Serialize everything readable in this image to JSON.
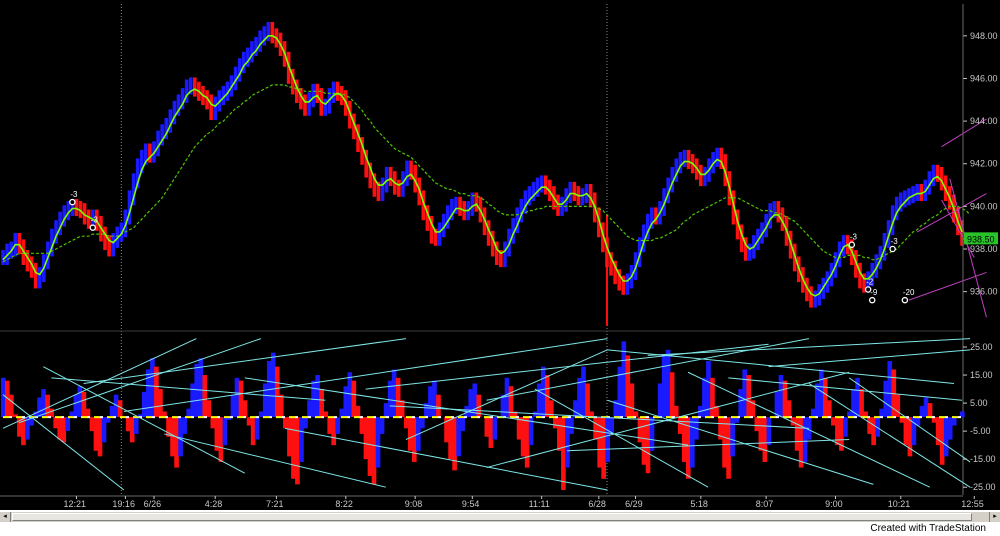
{
  "chart_data": [
    {
      "type": "line",
      "panel": "price",
      "title": "",
      "xlabel": "",
      "ylabel": "",
      "ylim": [
        934.2,
        949.4
      ],
      "yticks": [
        936.0,
        938.0,
        940.0,
        942.0,
        944.0,
        946.0,
        948.0
      ],
      "ytick_labels": [
        "936.00",
        "938.00",
        "940.00",
        "942.00",
        "944.00",
        "946.00",
        "948.00"
      ],
      "x_time_labels": [
        "12:21",
        "19:16",
        "6/26",
        "4:28",
        "7:21",
        "8:22",
        "9:08",
        "9:54",
        "11:11",
        "6/28",
        "6/29",
        "5:18",
        "8:07",
        "9:00",
        "10:21",
        "12:55"
      ],
      "x_label_index": [
        18,
        30,
        37,
        52,
        67,
        84,
        101,
        115,
        132,
        146,
        155,
        171,
        187,
        204,
        220,
        238
      ],
      "session_dividers": [
        29,
        148
      ],
      "last_price_label": "938.50",
      "grid": false,
      "series": [
        {
          "name": "",
          "role": "close",
          "values": [
            937.6,
            937.9,
            938.0,
            938.4,
            938.1,
            937.6,
            937.3,
            937.0,
            936.5,
            936.8,
            937.4,
            938.0,
            938.6,
            939.0,
            939.4,
            939.7,
            939.9,
            940.0,
            939.9,
            939.8,
            939.5,
            939.3,
            939.5,
            939.2,
            938.7,
            938.3,
            938.0,
            938.4,
            938.7,
            938.9,
            939.5,
            940.4,
            941.2,
            941.9,
            942.3,
            942.6,
            942.4,
            942.7,
            943.2,
            943.5,
            943.8,
            944.2,
            944.6,
            944.9,
            945.2,
            945.6,
            945.7,
            945.5,
            945.3,
            945.1,
            944.9,
            944.4,
            944.8,
            945.1,
            945.3,
            945.5,
            945.8,
            946.2,
            946.6,
            946.9,
            947.1,
            947.4,
            947.6,
            947.9,
            948.1,
            948.3,
            948.0,
            947.8,
            947.4,
            946.9,
            946.1,
            945.6,
            945.2,
            944.9,
            944.6,
            945.0,
            945.4,
            945.2,
            944.6,
            944.7,
            945.2,
            945.5,
            945.3,
            945.1,
            944.6,
            944.0,
            943.5,
            942.9,
            942.3,
            941.7,
            941.2,
            940.8,
            940.6,
            941.0,
            941.5,
            941.3,
            940.9,
            940.8,
            941.3,
            941.8,
            941.6,
            941.0,
            940.4,
            939.7,
            939.2,
            938.6,
            938.5,
            938.9,
            939.3,
            939.7,
            940.0,
            940.1,
            939.9,
            939.7,
            939.9,
            940.3,
            940.1,
            939.6,
            939.0,
            938.5,
            938.0,
            937.6,
            937.5,
            938.0,
            938.6,
            939.1,
            939.6,
            940.0,
            940.4,
            940.6,
            940.8,
            941.0,
            941.1,
            940.9,
            940.6,
            940.2,
            939.9,
            940.1,
            940.5,
            940.8,
            940.6,
            940.4,
            940.5,
            940.7,
            940.3,
            939.6,
            938.9,
            938.2,
            937.5,
            937.1,
            936.7,
            936.4,
            936.2,
            936.5,
            936.9,
            937.5,
            938.2,
            938.8,
            939.3,
            939.6,
            939.5,
            939.9,
            940.5,
            941.0,
            941.5,
            941.9,
            942.2,
            942.3,
            942.1,
            941.9,
            941.6,
            941.3,
            941.5,
            941.9,
            942.2,
            942.4,
            942.1,
            941.3,
            940.4,
            939.5,
            938.8,
            938.2,
            937.8,
            937.9,
            938.3,
            938.6,
            938.9,
            939.3,
            939.8,
            939.9,
            939.6,
            939.2,
            938.5,
            937.9,
            937.3,
            936.8,
            936.3,
            935.9,
            935.6,
            935.7,
            936.0,
            936.3,
            936.6,
            937.0,
            937.5,
            938.0,
            938.3,
            938.1,
            937.6,
            937.0,
            936.5,
            936.3,
            936.6,
            937.0,
            937.4,
            937.8,
            938.4,
            939.0,
            939.7,
            940.1,
            940.3,
            940.4,
            940.5,
            940.6,
            940.7,
            940.6,
            940.9,
            941.3,
            941.6,
            941.5,
            941.1,
            940.6,
            940.2,
            939.6,
            939.0,
            938.5
          ]
        },
        {
          "name": "",
          "role": "fast-average",
          "color": "#7cff00",
          "values": [
            937.5,
            937.7,
            937.9,
            938.2,
            938.2,
            937.9,
            937.6,
            937.3,
            936.9,
            936.8,
            937.1,
            937.6,
            938.1,
            938.6,
            939.0,
            939.4,
            939.7,
            939.9,
            939.9,
            939.8,
            939.6,
            939.5,
            939.4,
            939.3,
            939.0,
            938.7,
            938.4,
            938.3,
            938.5,
            938.7,
            939.1,
            939.7,
            940.4,
            941.1,
            941.7,
            942.1,
            942.3,
            942.5,
            942.8,
            943.1,
            943.4,
            943.8,
            944.2,
            944.5,
            944.8,
            945.2,
            945.4,
            945.5,
            945.4,
            945.2,
            945.1,
            944.8,
            944.7,
            944.9,
            945.1,
            945.3,
            945.6,
            945.9,
            946.2,
            946.6,
            946.8,
            947.1,
            947.3,
            947.6,
            947.8,
            948.0,
            948.0,
            947.9,
            947.6,
            947.2,
            946.6,
            946.1,
            945.6,
            945.2,
            944.9,
            944.9,
            945.1,
            945.2,
            944.9,
            944.8,
            945.0,
            945.2,
            945.3,
            945.2,
            944.9,
            944.4,
            943.9,
            943.4,
            942.9,
            942.3,
            941.8,
            941.3,
            941.0,
            941.0,
            941.2,
            941.3,
            941.1,
            941.0,
            941.1,
            941.4,
            941.5,
            941.2,
            940.8,
            940.2,
            939.7,
            939.2,
            938.8,
            938.8,
            939.0,
            939.3,
            939.6,
            939.9,
            939.9,
            939.8,
            939.8,
            940.0,
            940.1,
            939.8,
            939.4,
            938.9,
            938.5,
            938.0,
            937.8,
            937.9,
            938.2,
            938.7,
            939.1,
            939.6,
            940.0,
            940.3,
            940.5,
            940.7,
            940.9,
            940.9,
            940.7,
            940.4,
            940.1,
            940.1,
            940.3,
            940.6,
            940.6,
            940.5,
            940.5,
            940.6,
            940.4,
            940.0,
            939.4,
            938.7,
            938.1,
            937.6,
            937.2,
            936.8,
            936.5,
            936.5,
            936.7,
            937.1,
            937.7,
            938.3,
            938.8,
            939.2,
            939.4,
            939.7,
            940.1,
            940.6,
            941.1,
            941.5,
            941.9,
            942.1,
            942.1,
            942.0,
            941.8,
            941.5,
            941.5,
            941.7,
            942.0,
            942.2,
            942.1,
            941.6,
            940.9,
            940.1,
            939.3,
            938.7,
            938.2,
            938.0,
            938.1,
            938.4,
            938.7,
            939.0,
            939.4,
            939.6,
            939.6,
            939.3,
            938.9,
            938.3,
            937.7,
            937.1,
            936.6,
            936.2,
            935.9,
            935.8,
            935.9,
            936.2,
            936.5,
            936.8,
            937.2,
            937.7,
            938.1,
            938.2,
            937.9,
            937.4,
            936.9,
            936.6,
            936.6,
            936.8,
            937.1,
            937.5,
            938.0,
            938.6,
            939.2,
            939.7,
            940.0,
            940.2,
            940.4,
            940.5,
            940.6,
            940.6,
            940.7,
            941.0,
            941.3,
            941.4,
            941.2,
            940.8,
            940.4,
            939.9,
            939.3,
            938.8
          ]
        },
        {
          "name": "",
          "role": "slow-average",
          "color": "#4fc400",
          "dashed": true,
          "values": [
            937.4,
            937.5,
            937.6,
            937.7,
            937.8,
            937.8,
            937.8,
            937.8,
            937.8,
            937.8,
            937.8,
            937.8,
            937.9,
            938.0,
            938.1,
            938.2,
            938.3,
            938.4,
            938.5,
            938.6,
            938.6,
            938.6,
            938.7,
            938.7,
            938.7,
            938.7,
            938.6,
            938.6,
            938.6,
            938.7,
            938.8,
            938.9,
            939.0,
            939.2,
            939.4,
            939.6,
            939.8,
            940.0,
            940.2,
            940.4,
            940.7,
            941.0,
            941.3,
            941.6,
            941.9,
            942.2,
            942.5,
            942.8,
            943.0,
            943.2,
            943.4,
            943.5,
            943.7,
            943.9,
            944.0,
            944.2,
            944.4,
            944.6,
            944.7,
            944.9,
            945.0,
            945.2,
            945.3,
            945.4,
            945.5,
            945.6,
            945.7,
            945.7,
            945.7,
            945.7,
            945.6,
            945.6,
            945.5,
            945.5,
            945.4,
            945.4,
            945.4,
            945.4,
            945.4,
            945.3,
            945.3,
            945.3,
            945.3,
            945.3,
            945.2,
            945.1,
            944.9,
            944.7,
            944.5,
            944.2,
            944.0,
            943.7,
            943.5,
            943.3,
            943.1,
            942.9,
            942.7,
            942.6,
            942.5,
            942.4,
            942.3,
            942.1,
            941.9,
            941.7,
            941.5,
            941.3,
            941.1,
            941.0,
            940.9,
            940.8,
            940.8,
            940.7,
            940.6,
            940.6,
            940.5,
            940.5,
            940.5,
            940.4,
            940.3,
            940.1,
            940.0,
            939.8,
            939.7,
            939.6,
            939.6,
            939.6,
            939.6,
            939.7,
            939.7,
            939.8,
            939.8,
            939.9,
            939.9,
            940.0,
            940.0,
            940.0,
            940.0,
            940.0,
            940.0,
            940.0,
            940.0,
            940.0,
            940.0,
            940.0,
            940.0,
            940.0,
            939.9,
            939.8,
            939.6,
            939.4,
            939.2,
            939.0,
            938.8,
            938.6,
            938.5,
            938.4,
            938.4,
            938.4,
            938.4,
            938.4,
            938.5,
            938.5,
            938.6,
            938.7,
            938.8,
            938.9,
            939.1,
            939.3,
            939.4,
            939.6,
            939.7,
            939.8,
            939.9,
            940.0,
            940.1,
            940.2,
            940.3,
            940.4,
            940.4,
            940.4,
            940.4,
            940.3,
            940.2,
            940.1,
            940.0,
            939.9,
            939.8,
            939.8,
            939.8,
            939.7,
            939.7,
            939.6,
            939.5,
            939.4,
            939.3,
            939.1,
            938.9,
            938.7,
            938.5,
            938.3,
            938.1,
            937.9,
            937.8,
            937.7,
            937.6,
            937.6,
            937.6,
            937.7,
            937.7,
            937.7,
            937.7,
            937.6,
            937.6,
            937.5,
            937.5,
            937.6,
            937.7,
            937.8,
            937.9,
            938.0,
            938.2,
            938.4,
            938.6,
            938.8,
            938.9,
            939.1,
            939.2,
            939.4,
            939.5,
            939.6,
            939.8,
            939.9,
            940.0,
            940.0,
            940.0,
            939.9,
            939.8,
            939.6
          ]
        }
      ],
      "trade_markers": [
        {
          "label": "-3",
          "x_index": 17,
          "y": 940.2
        },
        {
          "label": "-3",
          "x_index": 22,
          "y": 939.0
        },
        {
          "label": "-3",
          "x_index": 208,
          "y": 938.2
        },
        {
          "label": "-3",
          "x_index": 218,
          "y": 938.0
        },
        {
          "label": "-2",
          "x_index": 212,
          "y": 936.1
        },
        {
          "label": "-9",
          "x_index": 213,
          "y": 935.6
        },
        {
          "label": "-20",
          "x_index": 221,
          "y": 935.6
        }
      ]
    },
    {
      "type": "bar",
      "panel": "oscillator",
      "title": "",
      "xlabel": "",
      "ylabel": "",
      "ylim": [
        -26,
        30
      ],
      "yticks": [
        -25,
        -15,
        -5,
        5,
        15,
        25
      ],
      "ytick_labels": [
        "-25.00",
        "-15.00",
        "-5.00",
        "5.00",
        "15.00",
        "25.00"
      ],
      "baseline": 0,
      "positive_color": "#ff1010",
      "negative_color": "#1a1aff",
      "signal_line_color": "#ffff00",
      "trendline_color": "#7fe6e6",
      "values": [
        14,
        13,
        8,
        1,
        -7,
        -10,
        -8,
        -3,
        2,
        7,
        10,
        8,
        3,
        -4,
        -8,
        -9,
        -5,
        2,
        8,
        11,
        9,
        3,
        -5,
        -12,
        -14,
        -9,
        -2,
        4,
        8,
        6,
        0,
        -5,
        -9,
        -6,
        1,
        9,
        17,
        21,
        18,
        10,
        2,
        -7,
        -14,
        -18,
        -14,
        -6,
        3,
        12,
        19,
        21,
        15,
        6,
        -4,
        -12,
        -16,
        -10,
        -1,
        8,
        14,
        13,
        6,
        -3,
        -10,
        -8,
        2,
        12,
        20,
        23,
        18,
        8,
        -4,
        -14,
        -22,
        -24,
        -16,
        -4,
        6,
        13,
        15,
        10,
        2,
        -6,
        -10,
        -6,
        3,
        11,
        16,
        13,
        4,
        -6,
        -15,
        -21,
        -24,
        -18,
        -6,
        5,
        13,
        17,
        14,
        6,
        -4,
        -12,
        -16,
        -12,
        -4,
        5,
        11,
        13,
        8,
        0,
        -9,
        -15,
        -19,
        -14,
        -5,
        4,
        10,
        12,
        8,
        0,
        -7,
        -11,
        -8,
        0,
        8,
        14,
        11,
        2,
        -8,
        -14,
        -18,
        -10,
        2,
        12,
        18,
        15,
        6,
        -4,
        -12,
        -26,
        -18,
        -6,
        6,
        14,
        18,
        12,
        2,
        -8,
        -18,
        -22,
        -16,
        -6,
        6,
        18,
        27,
        22,
        12,
        2,
        -9,
        -17,
        -20,
        -12,
        0,
        12,
        22,
        24,
        16,
        4,
        -6,
        -16,
        -22,
        -18,
        -8,
        4,
        14,
        20,
        14,
        4,
        -8,
        -18,
        -22,
        -14,
        -2,
        10,
        17,
        15,
        6,
        -5,
        -12,
        -16,
        -10,
        0,
        9,
        15,
        13,
        6,
        -3,
        -12,
        -18,
        -16,
        -8,
        3,
        12,
        17,
        14,
        6,
        -3,
        -10,
        -12,
        -7,
        2,
        10,
        14,
        10,
        2,
        -6,
        -10,
        -7,
        3,
        13,
        20,
        17,
        8,
        -2,
        -10,
        -14,
        -10,
        -3,
        4,
        7,
        5,
        -2,
        -10,
        -17,
        -14,
        -8,
        -3,
        0,
        2
      ]
    }
  ],
  "footer": {
    "credit": "Created with TradeStation"
  },
  "scrollbar": {
    "left_arrow": "◂",
    "right_arrow": "▸"
  }
}
